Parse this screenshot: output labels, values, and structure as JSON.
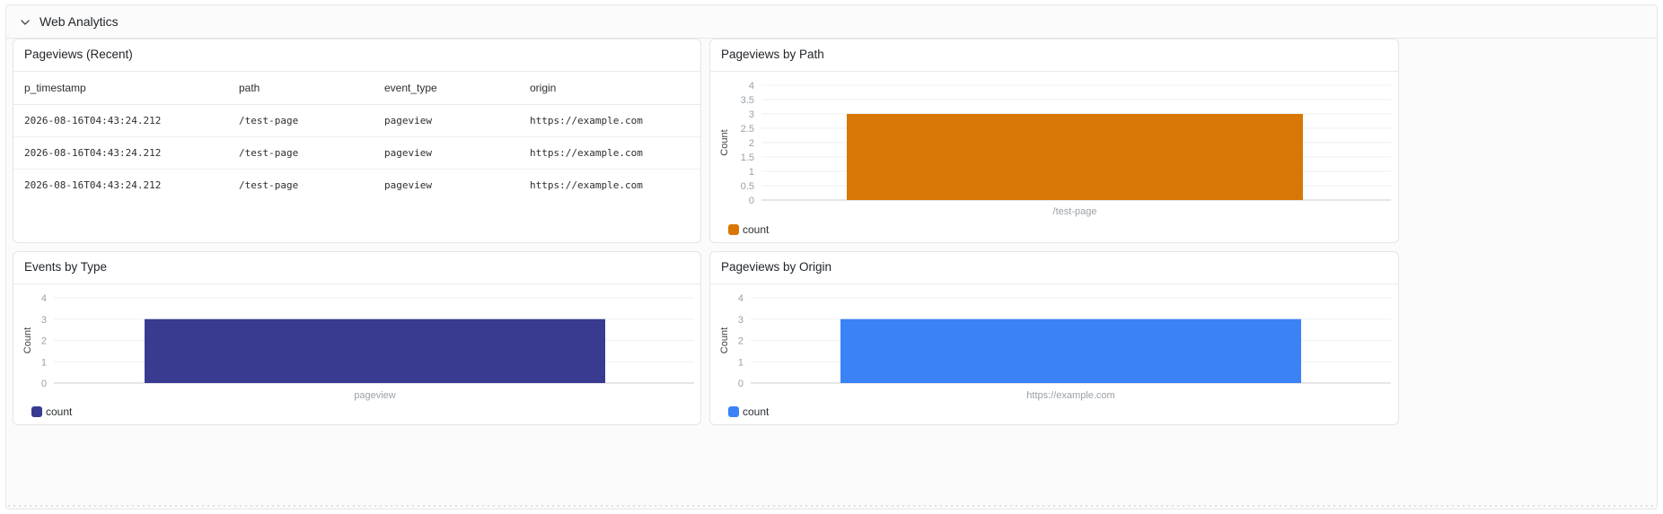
{
  "section": {
    "title": "Web Analytics"
  },
  "recent": {
    "title": "Pageviews (Recent)",
    "columns": [
      "p_timestamp",
      "path",
      "event_type",
      "origin"
    ],
    "rows": [
      [
        "2026-08-16T04:43:24.212",
        "/test-page",
        "pageview",
        "https://example.com"
      ],
      [
        "2026-08-16T04:43:24.212",
        "/test-page",
        "pageview",
        "https://example.com"
      ],
      [
        "2026-08-16T04:43:24.212",
        "/test-page",
        "pageview",
        "https://example.com"
      ]
    ]
  },
  "colors": {
    "path": "#d97706",
    "type": "#383b8f",
    "origin": "#3b82f6"
  },
  "chart_data": [
    {
      "id": "path",
      "type": "bar",
      "title": "Pageviews by Path",
      "categories": [
        "/test-page"
      ],
      "series": [
        {
          "name": "count",
          "values": [
            3
          ]
        }
      ],
      "ylabel": "Count",
      "ylim": [
        0,
        4
      ],
      "yticks": [
        "0",
        "0.5",
        "1",
        "1.5",
        "2",
        "2.5",
        "3",
        "3.5",
        "4"
      ],
      "grid": true,
      "legend": "bottom-left"
    },
    {
      "id": "type",
      "type": "bar",
      "title": "Events by Type",
      "categories": [
        "pageview"
      ],
      "series": [
        {
          "name": "count",
          "values": [
            3
          ]
        }
      ],
      "ylabel": "Count",
      "ylim": [
        0,
        4
      ],
      "yticks": [
        "0",
        "1",
        "2",
        "3",
        "4"
      ],
      "grid": true,
      "legend": "bottom-left"
    },
    {
      "id": "origin",
      "type": "bar",
      "title": "Pageviews by Origin",
      "categories": [
        "https://example.com"
      ],
      "series": [
        {
          "name": "count",
          "values": [
            3
          ]
        }
      ],
      "ylabel": "Count",
      "ylim": [
        0,
        4
      ],
      "yticks": [
        "0",
        "1",
        "2",
        "3",
        "4"
      ],
      "grid": true,
      "legend": "bottom-left"
    }
  ]
}
